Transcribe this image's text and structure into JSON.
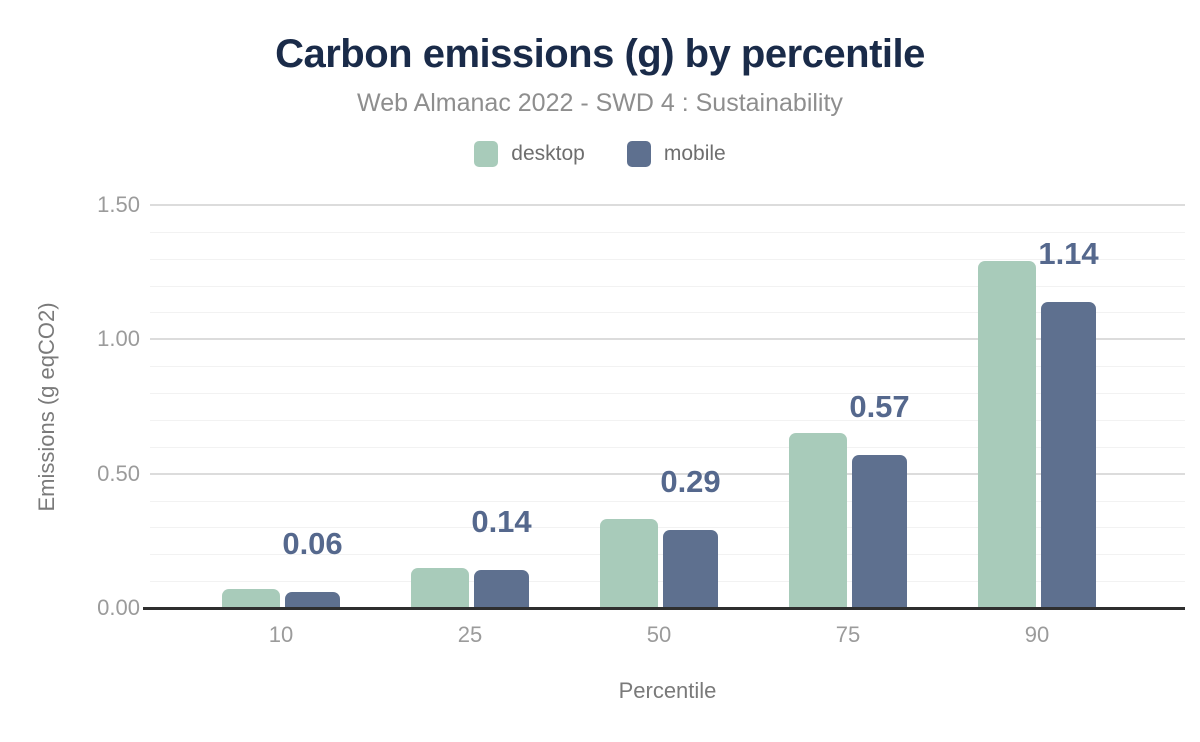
{
  "header": {
    "title": "Carbon emissions (g) by percentile",
    "subtitle": "Web Almanac 2022 - SWD 4 : Sustainability"
  },
  "legend": {
    "items": [
      {
        "label": "desktop",
        "color": "#a8cbba"
      },
      {
        "label": "mobile",
        "color": "#5e708f"
      }
    ]
  },
  "colors": {
    "title": "#1a2b49",
    "subtitle": "#8e8e8e",
    "legend_text": "#6e6e6e",
    "desktop_bar": "#a8cbba",
    "mobile_bar": "#5e708f",
    "data_label": "#55688d",
    "axis_tick_text": "#9b9b9b",
    "axis_title_text": "#7a7a7a",
    "grid_major": "#dcdcdc",
    "grid_minor": "#f2f2f2",
    "baseline": "#2f2f2f",
    "background": "#ffffff"
  },
  "chart_data": {
    "type": "bar",
    "title": "Carbon emissions (g) by percentile",
    "subtitle": "Web Almanac 2022 - SWD 4 : Sustainability",
    "categories": [
      "10",
      "25",
      "50",
      "75",
      "90"
    ],
    "series": [
      {
        "name": "desktop",
        "color": "#a8cbba",
        "values": [
          0.07,
          0.15,
          0.33,
          0.65,
          1.29
        ],
        "labels_shown": false
      },
      {
        "name": "mobile",
        "color": "#5e708f",
        "values": [
          0.06,
          0.14,
          0.29,
          0.57,
          1.14
        ],
        "labels_shown": true,
        "data_labels": [
          "0.06",
          "0.14",
          "0.29",
          "0.57",
          "1.14"
        ]
      }
    ],
    "xlabel": "Percentile",
    "ylabel": "Emissions (g eqCO2)",
    "ylim": [
      0,
      1.5
    ],
    "yticks": [
      {
        "value": 0.0,
        "label": "0.00"
      },
      {
        "value": 0.5,
        "label": "0.50"
      },
      {
        "value": 1.0,
        "label": "1.00"
      },
      {
        "value": 1.5,
        "label": "1.50"
      }
    ],
    "minor_tick_step": 0.1,
    "grid": "horizontal-only",
    "legend_position": "top"
  }
}
